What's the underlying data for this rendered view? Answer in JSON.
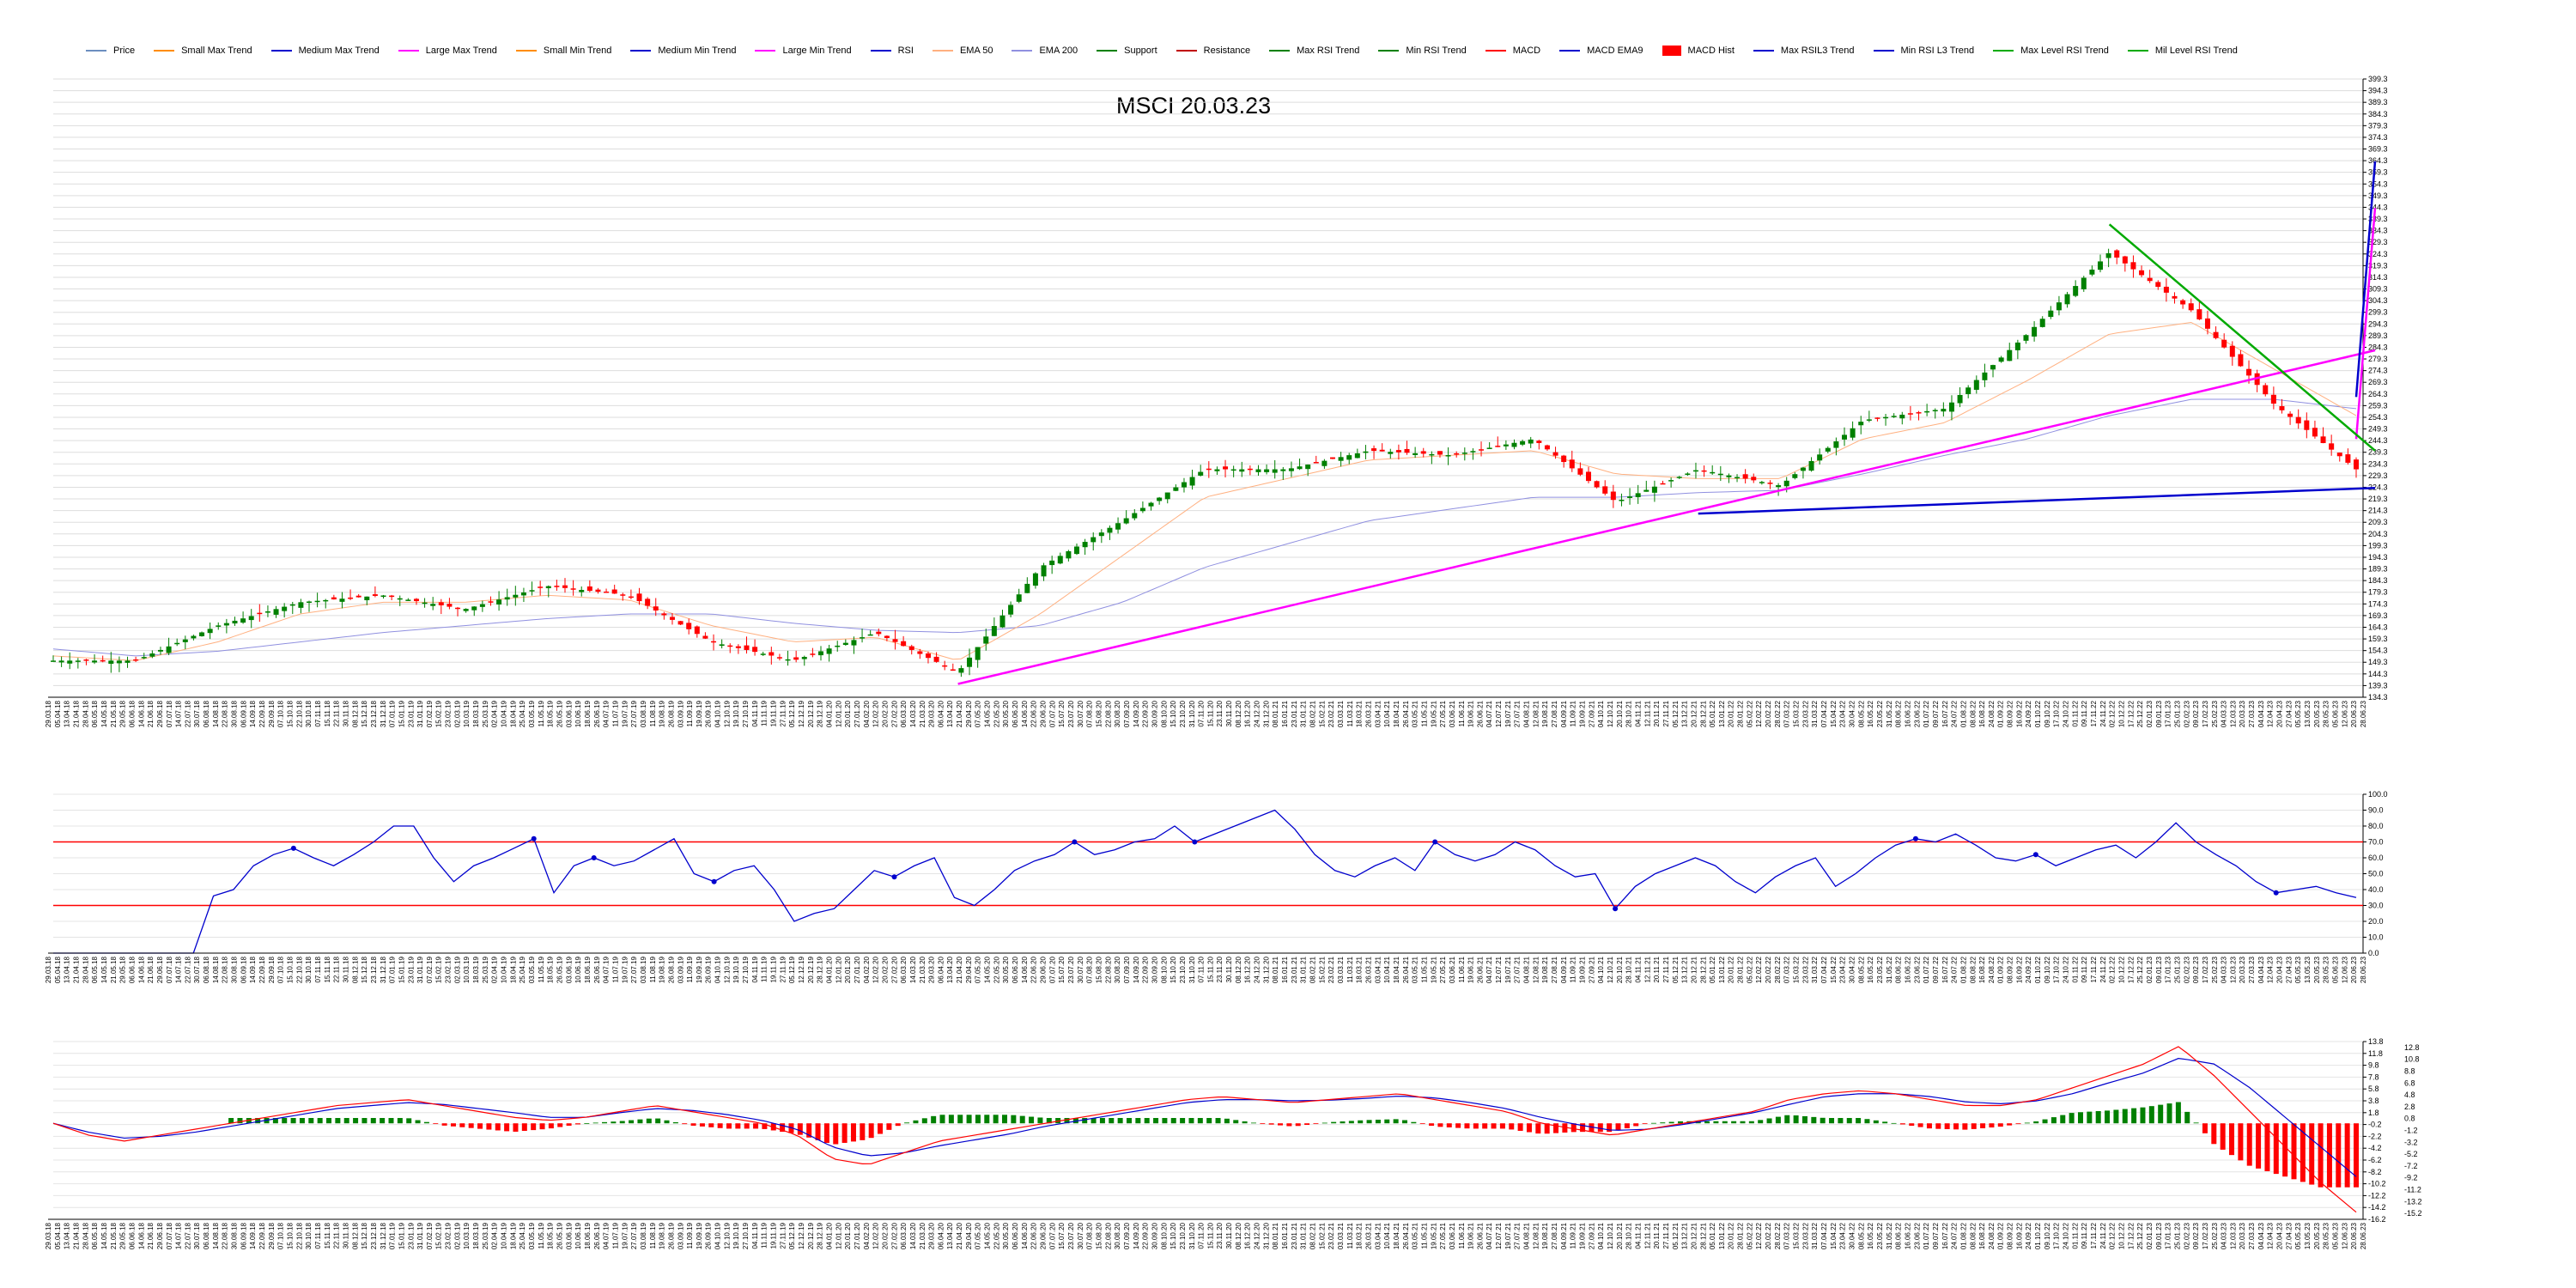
{
  "legend": [
    {
      "label": "Price",
      "color": "#6c8ebf"
    },
    {
      "label": "Small Max Trend",
      "color": "#ff8c00"
    },
    {
      "label": "Medium Max Trend",
      "color": "#0000cd"
    },
    {
      "label": "Large Max Trend",
      "color": "#ff00ff"
    },
    {
      "label": "Small Min Trend",
      "color": "#ff8c00"
    },
    {
      "label": "Medium Min Trend",
      "color": "#0000cd"
    },
    {
      "label": "Large Min Trend",
      "color": "#ff00ff"
    },
    {
      "label": "RSI",
      "color": "#0000cd"
    },
    {
      "label": "EMA 50",
      "color": "#ffb080"
    },
    {
      "label": "EMA 200",
      "color": "#9090e0"
    },
    {
      "label": "Support",
      "color": "#008000"
    },
    {
      "label": "Resistance",
      "color": "#c00000"
    },
    {
      "label": "Max RSI Trend",
      "color": "#008000"
    },
    {
      "label": "Min RSI Trend",
      "color": "#008000"
    },
    {
      "label": "MACD",
      "color": "#ff0000"
    },
    {
      "label": "MACD EMA9",
      "color": "#0000cd"
    },
    {
      "label": "MACD Hist",
      "color": "#ff0000",
      "box": true
    },
    {
      "label": "Max RSIL3 Trend",
      "color": "#0000cd"
    },
    {
      "label": "Min RSI L3 Trend",
      "color": "#0000cd"
    },
    {
      "label": "Max Level RSI Trend",
      "color": "#00aa00"
    },
    {
      "label": "Mil Level RSI Trend",
      "color": "#00aa00"
    }
  ],
  "title": "MSCI 20.03.23",
  "chart_data": [
    {
      "type": "candlestick",
      "panel": "price",
      "ylim": [
        134.3,
        399.3
      ],
      "y_ticks": [
        "399.3",
        "394.3",
        "389.3",
        "384.3",
        "379.3",
        "374.3",
        "369.3",
        "364.3",
        "359.3",
        "354.3",
        "349.3",
        "344.3",
        "339.3",
        "334.3",
        "329.3",
        "324.3",
        "319.3",
        "314.3",
        "309.3",
        "304.3",
        "299.3",
        "294.3",
        "289.3",
        "284.3",
        "279.3",
        "274.3",
        "269.3",
        "264.3",
        "259.3",
        "254.3",
        "249.3",
        "244.3",
        "239.3",
        "234.3",
        "229.3",
        "224.3",
        "219.3",
        "214.3",
        "209.3",
        "204.3",
        "199.3",
        "194.3",
        "189.3",
        "184.3",
        "179.3",
        "174.3",
        "169.3",
        "164.3",
        "159.3",
        "154.3",
        "149.3",
        "144.3",
        "139.3",
        "134.3"
      ],
      "close_approx": {
        "x": [
          "2018-04",
          "2018-06",
          "2018-08",
          "2018-10",
          "2018-12",
          "2019-01",
          "2019-03",
          "2019-05",
          "2019-07",
          "2019-09",
          "2019-11",
          "2019-12",
          "2020-02",
          "2020-04",
          "2020-06",
          "2020-08",
          "2020-10",
          "2020-12",
          "2021-02",
          "2021-04",
          "2021-06",
          "2021-07",
          "2021-09",
          "2021-11",
          "2021-12",
          "2022-01",
          "2022-02",
          "2022-03",
          "2022-03-20"
        ],
        "y": [
          150,
          150,
          165,
          175,
          178,
          172,
          182,
          178,
          158,
          150,
          162,
          145,
          190,
          210,
          232,
          232,
          240,
          238,
          245,
          218,
          232,
          225,
          253,
          258,
          290,
          325,
          300,
          260,
          232
        ]
      },
      "ema50_approx": [
        152,
        150,
        158,
        170,
        175,
        175,
        178,
        176,
        165,
        158,
        160,
        150,
        170,
        195,
        220,
        228,
        236,
        238,
        240,
        230,
        228,
        228,
        245,
        252,
        270,
        290,
        295,
        275,
        255
      ],
      "ema200_approx": [
        155,
        152,
        154,
        158,
        162,
        165,
        168,
        170,
        170,
        166,
        163,
        162,
        165,
        175,
        190,
        200,
        210,
        215,
        220,
        220,
        222,
        223,
        230,
        238,
        245,
        255,
        262,
        262,
        258
      ],
      "trendlines": [
        {
          "name": "Large Min Trend",
          "from": [
            "2019-12",
            140
          ],
          "to": [
            "2022-03-20",
            283
          ]
        },
        {
          "name": "Large Max Trend",
          "from": [
            "2021-01",
            245
          ],
          "to": [
            "2022-03-20",
            344
          ]
        },
        {
          "name": "Medium Max Trend",
          "from": [
            "2021-10",
            263
          ],
          "to": [
            "2022-03-20",
            364
          ]
        },
        {
          "name": "Medium Min Trend",
          "from": [
            "2021-06",
            213
          ],
          "to": [
            "2022-03-20",
            224
          ]
        },
        {
          "name": "Max Level RSI Trend",
          "from": [
            "2022-01",
            337
          ],
          "to": [
            "2022-03-20",
            240
          ]
        }
      ]
    },
    {
      "type": "line",
      "panel": "rsi",
      "ylim": [
        0,
        100
      ],
      "y_ticks": [
        "100.0",
        "90.0",
        "80.0",
        "70.0",
        "60.0",
        "50.0",
        "40.0",
        "30.0",
        "20.0",
        "10.0",
        "0.0"
      ],
      "levels": [
        70,
        30
      ],
      "series": [
        {
          "name": "RSI",
          "values": [
            0,
            0,
            0,
            0,
            0,
            0,
            0,
            0,
            36,
            40,
            55,
            62,
            66,
            60,
            55,
            62,
            70,
            80,
            80,
            60,
            45,
            55,
            60,
            66,
            72,
            38,
            55,
            60,
            55,
            58,
            65,
            72,
            50,
            45,
            52,
            55,
            40,
            20,
            25,
            28,
            40,
            52,
            48,
            55,
            60,
            35,
            30,
            40,
            52,
            58,
            62,
            70,
            62,
            65,
            70,
            72,
            80,
            70,
            75,
            80,
            85,
            90,
            78,
            62,
            52,
            48,
            55,
            60,
            52,
            70,
            62,
            58,
            62,
            70,
            65,
            55,
            48,
            50,
            28,
            42,
            50,
            55,
            60,
            55,
            45,
            38,
            48,
            55,
            60,
            42,
            50,
            60,
            68,
            72,
            70,
            75,
            68,
            60,
            58,
            62,
            55,
            60,
            65,
            68,
            60,
            70,
            82,
            70,
            62,
            55,
            45,
            38,
            40,
            42,
            38,
            35
          ]
        }
      ]
    },
    {
      "type": "bar+line",
      "panel": "macd",
      "ylim": [
        -16.2,
        13.8
      ],
      "y_ticks_left": [
        "13.8",
        "11.8",
        "9.8",
        "7.8",
        "5.8",
        "3.8",
        "1.8",
        "-0.2",
        "-2.2",
        "-4.2",
        "-6.2",
        "-8.2",
        "-10.2",
        "-12.2",
        "-14.2",
        "-16.2"
      ],
      "y_ticks_right": [
        "12.8",
        "10.8",
        "8.8",
        "6.8",
        "4.8",
        "2.8",
        "0.8",
        "-1.2",
        "-3.2",
        "-5.2",
        "-7.2",
        "-9.2",
        "-11.2",
        "-13.2",
        "-15.2"
      ],
      "series": [
        {
          "name": "MACD",
          "values": [
            0,
            -2,
            -3,
            -2,
            -1,
            0,
            1,
            2,
            3,
            3.5,
            4,
            3,
            2,
            1,
            0.5,
            1,
            2,
            3,
            2,
            1,
            0,
            -2,
            -6,
            -7,
            -5,
            -3,
            -2,
            -1,
            0,
            1,
            2,
            3,
            4,
            4.5,
            4,
            3.5,
            4,
            4.5,
            5,
            4,
            3,
            2,
            0,
            -1,
            -2,
            -1,
            0,
            1,
            2,
            4,
            5,
            5.5,
            5,
            4,
            3,
            3,
            4,
            6,
            8,
            10,
            13,
            8,
            2,
            -4,
            -10,
            -15
          ]
        },
        {
          "name": "MACD EMA9",
          "values": [
            0,
            -1.5,
            -2.5,
            -2.2,
            -1.5,
            -0.5,
            0.5,
            1.5,
            2.5,
            3,
            3.5,
            3.2,
            2.5,
            1.8,
            1,
            1,
            1.8,
            2.5,
            2.2,
            1.5,
            0.5,
            -1,
            -4,
            -5.5,
            -5,
            -3.8,
            -2.8,
            -1.8,
            -0.5,
            0.5,
            1.5,
            2.5,
            3.5,
            4,
            4,
            3.8,
            3.9,
            4.2,
            4.6,
            4.3,
            3.5,
            2.5,
            1,
            -0.2,
            -1.2,
            -1,
            -0.2,
            0.8,
            1.8,
            3.2,
            4.5,
            5,
            5,
            4.5,
            3.6,
            3.3,
            3.8,
            5,
            6.8,
            8.5,
            11,
            10,
            6,
            1,
            -4,
            -9
          ]
        }
      ]
    }
  ]
}
